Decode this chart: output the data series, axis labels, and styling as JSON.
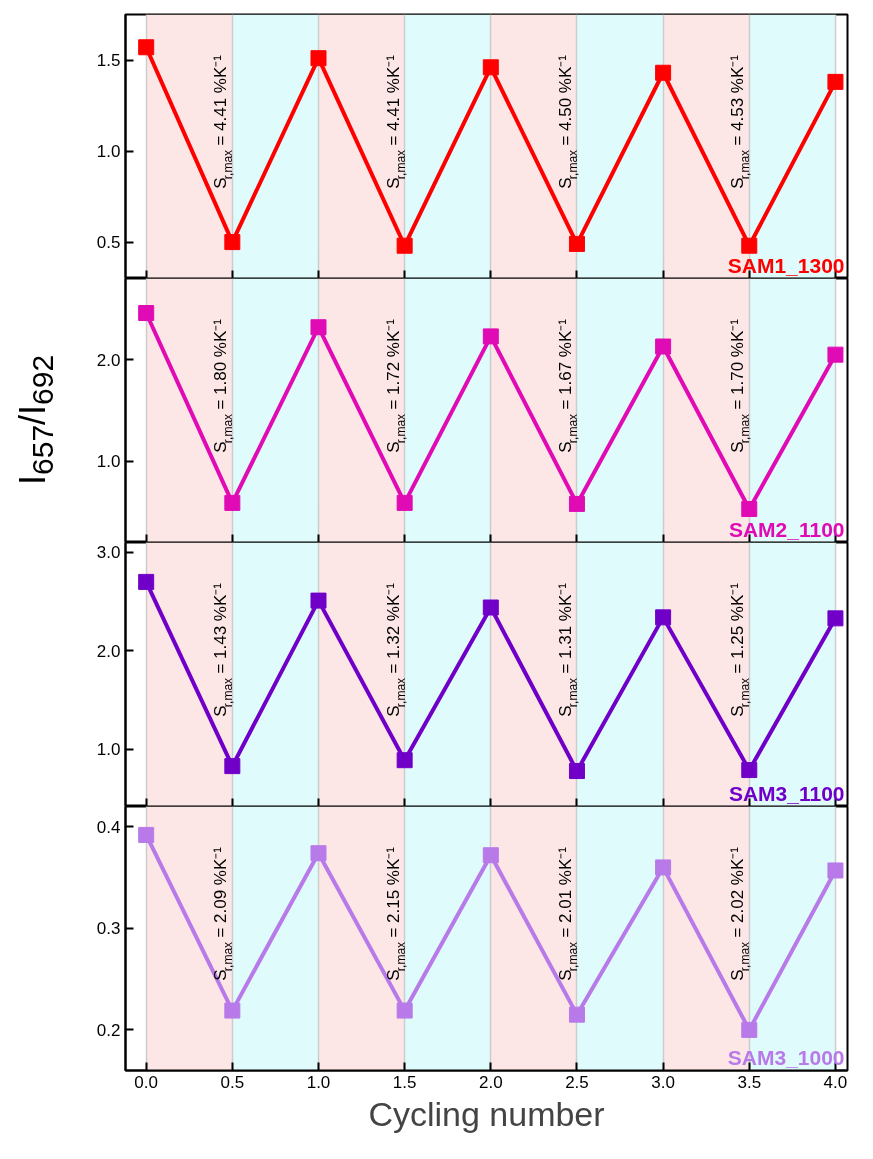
{
  "chart_data": [
    {
      "type": "line",
      "x": [
        0,
        0.5,
        1,
        1.5,
        2,
        2.5,
        3,
        3.5,
        4
      ],
      "xlim": [
        -0.12,
        4.07
      ],
      "xticks": [
        0,
        0.5,
        1,
        1.5,
        2,
        2.5,
        3,
        3.5,
        4
      ],
      "ylim": [
        0.3,
        1.75
      ],
      "yticks": [
        0.5,
        {
          "value": 1,
          "label": "1.0"
        },
        1.5
      ],
      "tick_labels": "y",
      "grid": "x",
      "marker": "square",
      "line_style": "solid",
      "series": [
        {
          "name": "SAM1_1300",
          "color": "#ff0000",
          "values": [
            1.57,
            0.5,
            1.51,
            0.48,
            1.46,
            0.49,
            1.43,
            0.48,
            1.38
          ]
        }
      ],
      "bands": [
        {
          "axis": "x",
          "from": 0,
          "to": 0.5,
          "color": "#fde6e6"
        },
        {
          "axis": "x",
          "from": 0.5,
          "to": 1,
          "color": "#dffbfc"
        },
        {
          "axis": "x",
          "from": 1,
          "to": 1.5,
          "color": "#fde6e6"
        },
        {
          "axis": "x",
          "from": 1.5,
          "to": 2,
          "color": "#dffbfc"
        },
        {
          "axis": "x",
          "from": 2,
          "to": 2.5,
          "color": "#fde6e6"
        },
        {
          "axis": "x",
          "from": 2.5,
          "to": 3,
          "color": "#dffbfc"
        },
        {
          "axis": "x",
          "from": 3,
          "to": 3.5,
          "color": "#fde6e6"
        },
        {
          "axis": "x",
          "from": 3.5,
          "to": 4,
          "color": "#dffbfc"
        }
      ],
      "annotations": [
        "S$_{r,max}$ = 4.41 %K⁻¹",
        "S$_{r,max}$ = 4.41 %K⁻¹",
        "S$_{r,max}$ = 4.50 %K⁻¹",
        "S$_{r,max}$ = 4.53 %K⁻¹"
      ]
    },
    {
      "type": "line",
      "ylabel": "I$_{657}$/I$_{692}$",
      "x": [
        0,
        0.5,
        1,
        1.5,
        2,
        2.5,
        3,
        3.5,
        4
      ],
      "xlim": [
        -0.12,
        4.07
      ],
      "xticks": [
        0,
        0.5,
        1,
        1.5,
        2,
        2.5,
        3,
        3.5,
        4
      ],
      "ylim": [
        0.2,
        2.8
      ],
      "yticks": [
        {
          "value": 1,
          "label": "1.0"
        },
        {
          "value": 2,
          "label": "2.0"
        }
      ],
      "tick_labels": "y",
      "grid": "x",
      "marker": "square",
      "line_style": "solid",
      "series": [
        {
          "name": "SAM2_1100",
          "color": "#e00bb4",
          "values": [
            2.46,
            0.59,
            2.32,
            0.59,
            2.23,
            0.58,
            2.13,
            0.53,
            2.05
          ]
        }
      ],
      "bands": [
        {
          "axis": "x",
          "from": 0,
          "to": 0.5,
          "color": "#fde6e6"
        },
        {
          "axis": "x",
          "from": 0.5,
          "to": 1,
          "color": "#dffbfc"
        },
        {
          "axis": "x",
          "from": 1,
          "to": 1.5,
          "color": "#fde6e6"
        },
        {
          "axis": "x",
          "from": 1.5,
          "to": 2,
          "color": "#dffbfc"
        },
        {
          "axis": "x",
          "from": 2,
          "to": 2.5,
          "color": "#fde6e6"
        },
        {
          "axis": "x",
          "from": 2.5,
          "to": 3,
          "color": "#dffbfc"
        },
        {
          "axis": "x",
          "from": 3,
          "to": 3.5,
          "color": "#fde6e6"
        },
        {
          "axis": "x",
          "from": 3.5,
          "to": 4,
          "color": "#dffbfc"
        }
      ],
      "annotations": [
        "S$_{r,max}$ = 1.80 %K⁻¹",
        "S$_{r,max}$ = 1.72 %K⁻¹",
        "S$_{r,max}$ = 1.67 %K⁻¹",
        "S$_{r,max}$ = 1.70 %K⁻¹"
      ]
    },
    {
      "type": "line",
      "x": [
        0,
        0.5,
        1,
        1.5,
        2,
        2.5,
        3,
        3.5,
        4
      ],
      "xlim": [
        -0.12,
        4.07
      ],
      "xticks": [
        0,
        0.5,
        1,
        1.5,
        2,
        2.5,
        3,
        3.5,
        4
      ],
      "ylim": [
        0.42,
        3.1
      ],
      "yticks": [
        {
          "value": 1,
          "label": "1.0"
        },
        {
          "value": 2,
          "label": "2.0"
        },
        {
          "value": 3,
          "label": "3.0"
        }
      ],
      "tick_labels": "y",
      "grid": "x",
      "marker": "square",
      "line_style": "solid",
      "series": [
        {
          "name": "SAM3_1100",
          "color": "#7000c8",
          "values": [
            2.7,
            0.83,
            2.51,
            0.89,
            2.44,
            0.78,
            2.34,
            0.79,
            2.33
          ]
        }
      ],
      "bands": [
        {
          "axis": "x",
          "from": 0,
          "to": 0.5,
          "color": "#fde6e6"
        },
        {
          "axis": "x",
          "from": 0.5,
          "to": 1,
          "color": "#dffbfc"
        },
        {
          "axis": "x",
          "from": 1,
          "to": 1.5,
          "color": "#fde6e6"
        },
        {
          "axis": "x",
          "from": 1.5,
          "to": 2,
          "color": "#dffbfc"
        },
        {
          "axis": "x",
          "from": 2,
          "to": 2.5,
          "color": "#fde6e6"
        },
        {
          "axis": "x",
          "from": 2.5,
          "to": 3,
          "color": "#dffbfc"
        },
        {
          "axis": "x",
          "from": 3,
          "to": 3.5,
          "color": "#fde6e6"
        },
        {
          "axis": "x",
          "from": 3.5,
          "to": 4,
          "color": "#dffbfc"
        }
      ],
      "annotations": [
        "S$_{r,max}$ = 1.43 %K⁻¹",
        "S$_{r,max}$ = 1.32 %K⁻¹",
        "S$_{r,max}$ = 1.31 %K⁻¹",
        "S$_{r,max}$ = 1.25 %K⁻¹"
      ]
    },
    {
      "type": "line",
      "xlabel": "Cycling number",
      "x": [
        0,
        0.5,
        1,
        1.5,
        2,
        2.5,
        3,
        3.5,
        4
      ],
      "xlim": [
        -0.12,
        4.07
      ],
      "xticks": [
        {
          "value": 0,
          "label": "0.0"
        },
        0.5,
        {
          "value": 1,
          "label": "1.0"
        },
        1.5,
        {
          "value": 2,
          "label": "2.0"
        },
        2.5,
        {
          "value": 3,
          "label": "3.0"
        },
        3.5,
        {
          "value": 4,
          "label": "4.0"
        }
      ],
      "ylim": [
        0.16,
        0.42
      ],
      "yticks": [
        0.2,
        0.3,
        0.4
      ],
      "grid": "x",
      "marker": "square",
      "line_style": "solid",
      "series": [
        {
          "name": "SAM3_1000",
          "color": "#b87ae8",
          "values": [
            0.392,
            0.219,
            0.374,
            0.219,
            0.372,
            0.215,
            0.36,
            0.2,
            0.357
          ]
        }
      ],
      "bands": [
        {
          "axis": "x",
          "from": 0,
          "to": 0.5,
          "color": "#fde6e6"
        },
        {
          "axis": "x",
          "from": 0.5,
          "to": 1,
          "color": "#dffbfc"
        },
        {
          "axis": "x",
          "from": 1,
          "to": 1.5,
          "color": "#fde6e6"
        },
        {
          "axis": "x",
          "from": 1.5,
          "to": 2,
          "color": "#dffbfc"
        },
        {
          "axis": "x",
          "from": 2,
          "to": 2.5,
          "color": "#fde6e6"
        },
        {
          "axis": "x",
          "from": 2.5,
          "to": 3,
          "color": "#dffbfc"
        },
        {
          "axis": "x",
          "from": 3,
          "to": 3.5,
          "color": "#fde6e6"
        },
        {
          "axis": "x",
          "from": 3.5,
          "to": 4,
          "color": "#dffbfc"
        }
      ],
      "annotations": [
        "S$_{r,max}$ = 2.09 %K⁻¹",
        "S$_{r,max}$ = 2.15 %K⁻¹",
        "S$_{r,max}$ = 2.01 %K⁻¹",
        "S$_{r,max}$ = 2.02 %K⁻¹"
      ]
    }
  ]
}
